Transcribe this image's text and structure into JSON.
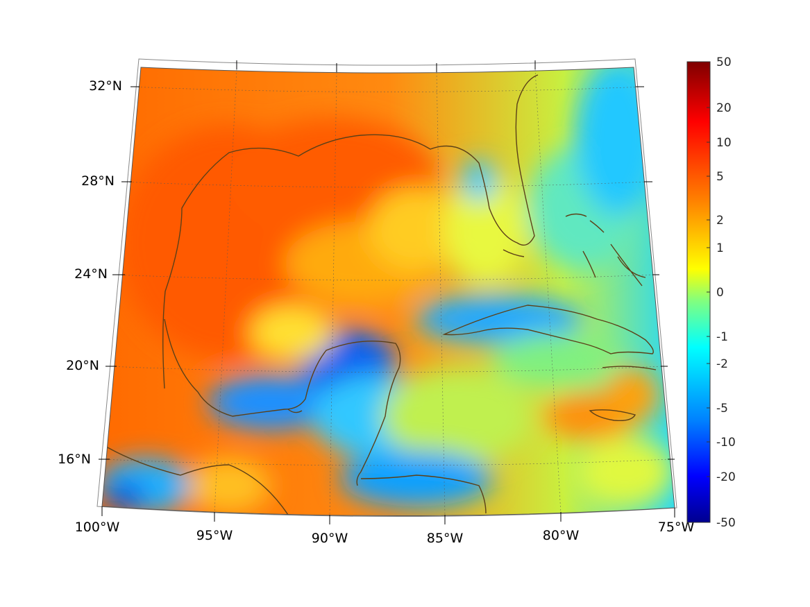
{
  "map": {
    "lat_labels": [
      "32°N",
      "28°N",
      "24°N",
      "20°N",
      "16°N"
    ],
    "lon_labels": [
      "100°W",
      "95°W",
      "90°W",
      "85°W",
      "80°W",
      "75°W"
    ],
    "lat_range": [
      14,
      33
    ],
    "lon_range": [
      -100,
      -75
    ],
    "grid": true,
    "coastline_color": "#5c4018"
  },
  "colorbar": {
    "ticks": [
      "50",
      "20",
      "10",
      "5",
      "2",
      "1",
      "0",
      "-1",
      "-2",
      "-5",
      "-10",
      "-20",
      "-50"
    ],
    "colors": [
      "#7f0000",
      "#ff0000",
      "#ff8000",
      "#ffff00",
      "#80ff80",
      "#00ffff",
      "#0080ff",
      "#0000ff",
      "#00008f"
    ],
    "placement": "right"
  }
}
